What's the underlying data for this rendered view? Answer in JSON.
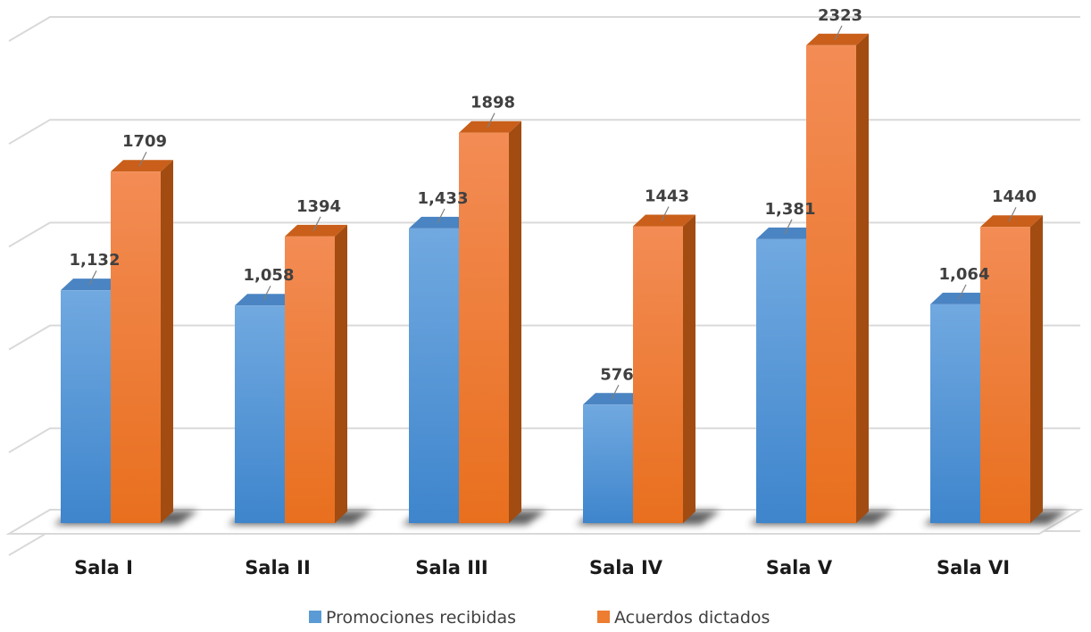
{
  "chart_data": {
    "type": "bar",
    "style": "3d-clustered-column",
    "categories": [
      "Sala I",
      "Sala II",
      "Sala III",
      "Sala IV",
      "Sala V",
      "Sala VI"
    ],
    "series": [
      {
        "name": "Promociones recibidas",
        "color": "#5b9bd5",
        "values": [
          1132,
          1058,
          1433,
          576,
          1381,
          1064
        ],
        "labels": [
          "1,132",
          "1,058",
          "1,433",
          "576",
          "1,381",
          "1,064"
        ]
      },
      {
        "name": "Acuerdos dictados",
        "color": "#ed7d31",
        "values": [
          1709,
          1394,
          1898,
          1443,
          2323,
          1440
        ],
        "labels": [
          "1709",
          "1394",
          "1898",
          "1443",
          "2323",
          "1440"
        ]
      }
    ],
    "ylim": [
      0,
      2500
    ],
    "grid": true,
    "legend_position": "bottom"
  }
}
